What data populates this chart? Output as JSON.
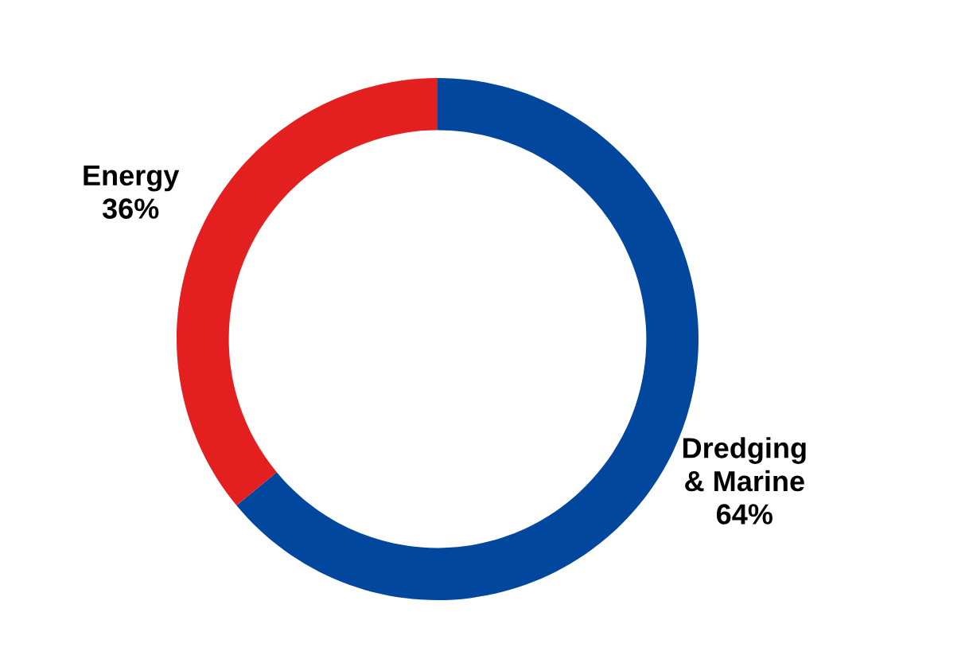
{
  "chart_data": {
    "type": "donut",
    "categories": [
      "Dredging & Marine",
      "Energy"
    ],
    "values": [
      64,
      36
    ],
    "value_labels": [
      "64%",
      "36%"
    ],
    "colors": [
      "#00479d",
      "#e31f1f"
    ],
    "legend": false
  }
}
